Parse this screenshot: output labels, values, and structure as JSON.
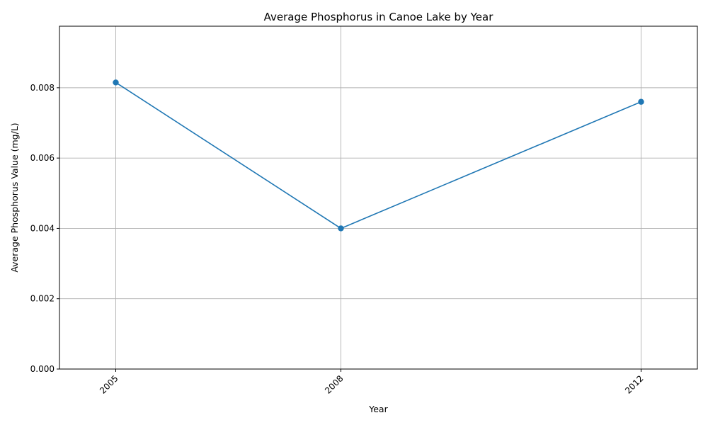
{
  "chart_data": {
    "type": "line",
    "title": "Average Phosphorus in Canoe Lake by Year",
    "xlabel": "Year",
    "ylabel": "Average Phosphorus Value (mg/L)",
    "x": [
      "2005",
      "2008",
      "2012"
    ],
    "x_numeric": [
      2005,
      2008,
      2012
    ],
    "xlim": [
      2004.25,
      2012.75
    ],
    "ylim": [
      0,
      0.00975
    ],
    "y_ticks": [
      "0.000",
      "0.002",
      "0.004",
      "0.006",
      "0.008"
    ],
    "series": [
      {
        "values": [
          0.00815,
          0.004,
          0.0076
        ],
        "color": "#1f77b4",
        "marker": "circle"
      }
    ],
    "grid": true,
    "x_tick_rotation": "45-degree"
  }
}
